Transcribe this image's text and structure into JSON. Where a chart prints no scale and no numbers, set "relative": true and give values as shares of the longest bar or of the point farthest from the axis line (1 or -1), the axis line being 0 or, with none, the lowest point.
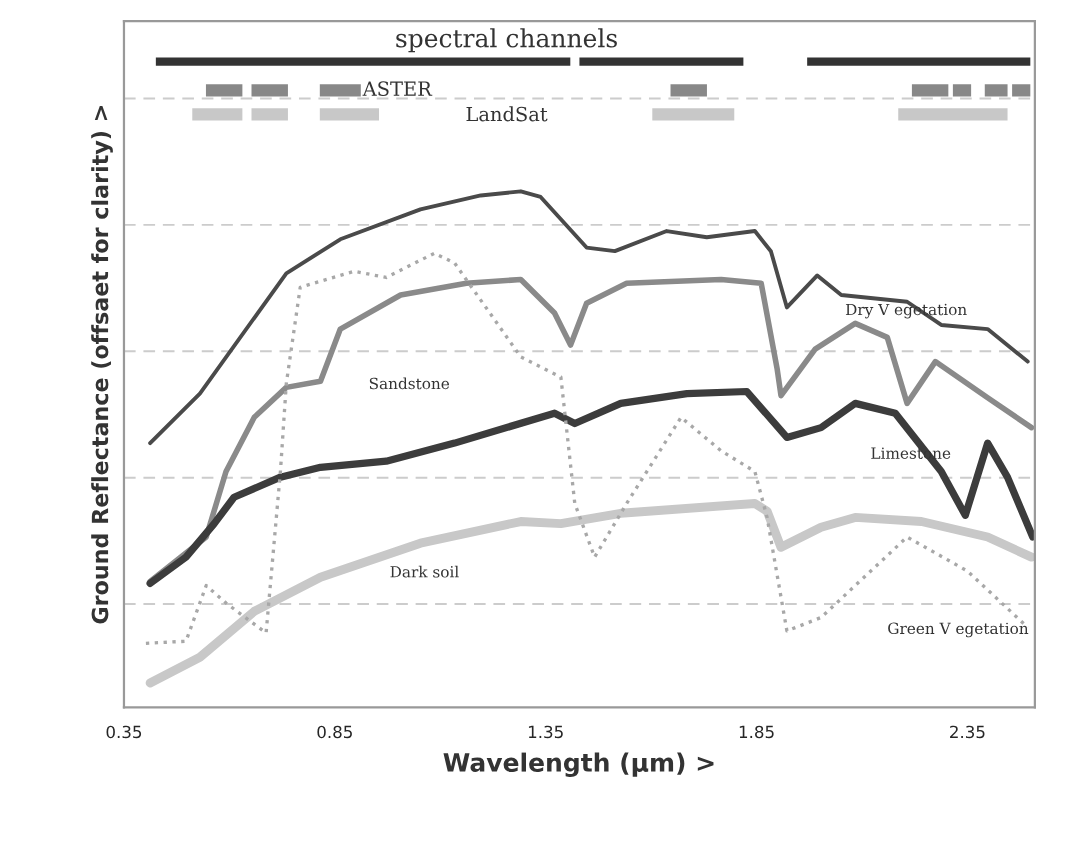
{
  "chart_data": {
    "type": "line",
    "relative": true,
    "xlabel": "Wavelength (µm) >",
    "ylabel": "Ground Reflectance (offsaet for clarity) >",
    "xlim": [
      0.35,
      2.51
    ],
    "xticks": [
      0.35,
      0.85,
      1.35,
      1.85,
      2.35
    ],
    "tick_labels": "x",
    "grid": "y",
    "legend": false,
    "marker": "none",
    "line_style": "solid",
    "annotations": [
      "spectral channels",
      "ASTER",
      "LandSat"
    ],
    "series": [
      {
        "name": "Dry V egetation",
        "color": "#4a4a4a",
        "x": [
          0.412,
          0.53,
          0.735,
          0.863,
          1.053,
          1.196,
          1.291,
          1.338,
          1.447,
          1.514,
          1.637,
          1.732,
          1.846,
          1.884,
          1.922,
          1.994,
          2.051,
          2.207,
          2.288,
          2.398,
          2.493
        ],
        "values": [
          0.512,
          0.608,
          0.841,
          0.907,
          0.965,
          0.992,
          1.0,
          0.989,
          0.891,
          0.884,
          0.923,
          0.911,
          0.923,
          0.884,
          0.775,
          0.837,
          0.799,
          0.786,
          0.741,
          0.733,
          0.67
        ]
      },
      {
        "name": "Sandstone",
        "color": "#8a8a8a",
        "x": [
          0.412,
          0.545,
          0.592,
          0.659,
          0.735,
          0.816,
          0.863,
          1.006,
          1.162,
          1.291,
          1.371,
          1.409,
          1.447,
          1.542,
          1.766,
          1.861,
          1.899,
          1.908,
          1.989,
          2.084,
          2.16,
          2.207,
          2.274,
          2.398,
          2.502
        ],
        "values": [
          0.244,
          0.33,
          0.457,
          0.562,
          0.62,
          0.632,
          0.733,
          0.799,
          0.822,
          0.829,
          0.764,
          0.702,
          0.783,
          0.822,
          0.829,
          0.822,
          0.655,
          0.604,
          0.694,
          0.744,
          0.717,
          0.589,
          0.67,
          0.6,
          0.542
        ]
      },
      {
        "name": "Limestone",
        "color": "#3c3c3c",
        "x": [
          0.412,
          0.497,
          0.564,
          0.611,
          0.721,
          0.816,
          0.972,
          1.134,
          1.371,
          1.419,
          1.528,
          1.685,
          1.827,
          1.922,
          2.003,
          2.084,
          2.179,
          2.288,
          2.345,
          2.398,
          2.445,
          2.505
        ],
        "values": [
          0.24,
          0.291,
          0.356,
          0.407,
          0.446,
          0.465,
          0.477,
          0.512,
          0.57,
          0.55,
          0.589,
          0.608,
          0.612,
          0.523,
          0.542,
          0.589,
          0.57,
          0.457,
          0.372,
          0.512,
          0.446,
          0.33
        ]
      },
      {
        "name": "Dark soil",
        "color": "#c8c8c8",
        "x": [
          0.412,
          0.53,
          0.659,
          0.816,
          1.053,
          1.291,
          1.386,
          1.528,
          1.846,
          1.875,
          1.908,
          2.003,
          2.084,
          2.241,
          2.398,
          2.502
        ],
        "values": [
          0.047,
          0.097,
          0.186,
          0.252,
          0.318,
          0.36,
          0.356,
          0.376,
          0.395,
          0.38,
          0.31,
          0.349,
          0.368,
          0.36,
          0.33,
          0.291
        ]
      },
      {
        "name": "Green V egetation",
        "color": "#a8a8a8",
        "line_style": "dotted",
        "x": [
          0.402,
          0.497,
          0.545,
          0.592,
          0.687,
          0.721,
          0.735,
          0.768,
          0.896,
          0.972,
          1.086,
          1.134,
          1.291,
          1.386,
          1.419,
          1.466,
          1.542,
          1.671,
          1.766,
          1.846,
          1.875,
          1.922,
          2.003,
          2.207,
          2.35,
          2.493
        ],
        "values": [
          0.124,
          0.128,
          0.236,
          0.202,
          0.144,
          0.457,
          0.628,
          0.814,
          0.845,
          0.833,
          0.88,
          0.861,
          0.679,
          0.64,
          0.395,
          0.291,
          0.395,
          0.562,
          0.497,
          0.457,
          0.368,
          0.148,
          0.174,
          0.33,
          0.264,
          0.155
        ]
      }
    ]
  }
}
